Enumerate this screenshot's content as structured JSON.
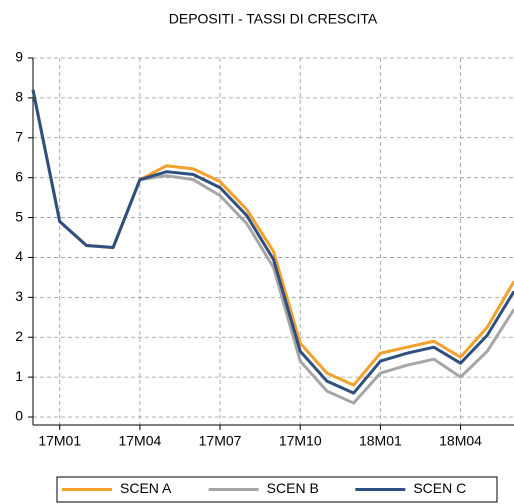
{
  "chart_data": {
    "type": "line",
    "title": "DEPOSITI   - TASSI DI CRESCITA",
    "categories": [
      null,
      "17M01",
      null,
      null,
      "17M04",
      null,
      null,
      "17M07",
      null,
      null,
      "17M10",
      null,
      null,
      "18M01",
      null,
      null,
      "18M04",
      null,
      null
    ],
    "series": [
      {
        "name": "SCEN A",
        "color": "#f5a02a",
        "values": [
          8.2,
          4.9,
          4.3,
          4.25,
          5.95,
          6.3,
          6.22,
          5.9,
          5.2,
          4.15,
          1.85,
          1.1,
          0.8,
          1.6,
          1.75,
          1.9,
          1.5,
          2.25,
          3.4
        ]
      },
      {
        "name": "SCEN B",
        "color": "#a6a6a6",
        "values": [
          8.2,
          4.9,
          4.3,
          4.25,
          5.95,
          6.05,
          5.95,
          5.55,
          4.85,
          3.75,
          1.4,
          0.65,
          0.35,
          1.1,
          1.3,
          1.45,
          1.0,
          1.65,
          2.7
        ]
      },
      {
        "name": "SCEN C",
        "color": "#2e4f7f",
        "values": [
          8.2,
          4.9,
          4.3,
          4.25,
          5.95,
          6.15,
          6.08,
          5.75,
          5.05,
          3.95,
          1.65,
          0.9,
          0.6,
          1.4,
          1.6,
          1.75,
          1.35,
          2.05,
          3.15
        ]
      }
    ],
    "ylim": [
      -0.2,
      9
    ],
    "yticks": [
      0,
      1,
      2,
      3,
      4,
      5,
      6,
      7,
      8,
      9
    ],
    "grid": true,
    "legend": "bottom"
  }
}
